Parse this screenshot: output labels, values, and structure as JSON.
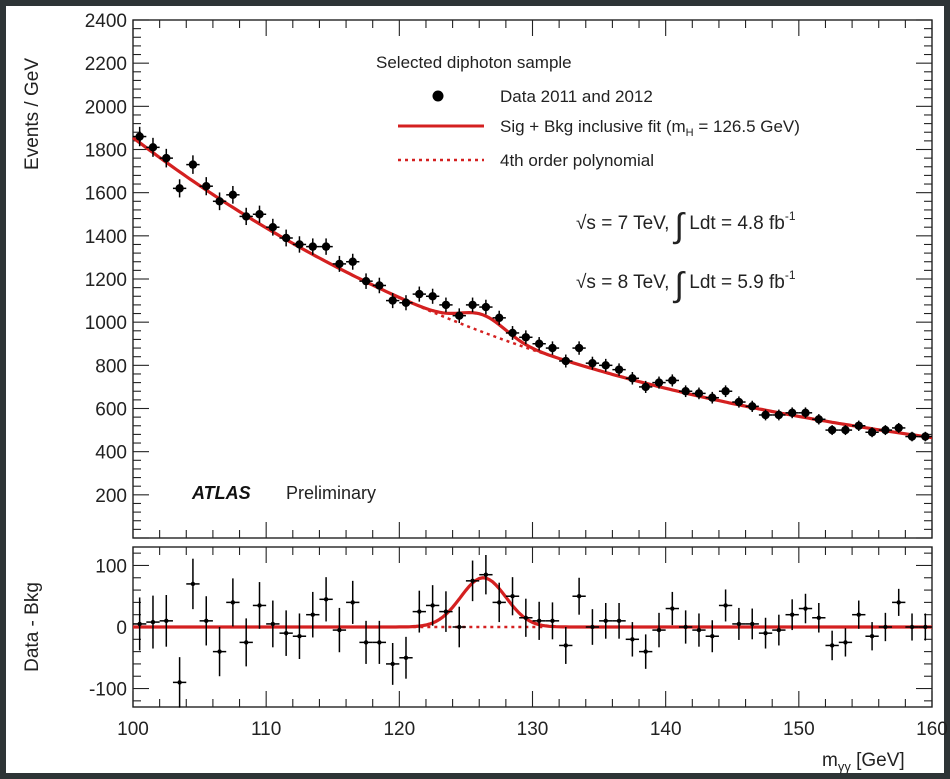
{
  "chart_data": [
    {
      "type": "scatter",
      "panel": "main",
      "ylabel": "Events / GeV",
      "xlim": [
        100,
        160
      ],
      "ylim": [
        0,
        2400
      ],
      "yticks": [
        "200",
        "400",
        "600",
        "800",
        "1000",
        "1200",
        "1400",
        "1600",
        "1800",
        "2000",
        "2200",
        "2400"
      ],
      "legend_header": "Selected diphoton sample",
      "legend": [
        {
          "label": "Data 2011 and 2012",
          "style": "marker",
          "color": "#000000"
        },
        {
          "label": "Sig + Bkg inclusive fit (m_H = 126.5 GeV)",
          "style": "solid",
          "color": "#d42020"
        },
        {
          "label": "4th order polynomial",
          "style": "dotted",
          "color": "#d42020"
        }
      ],
      "annotations": {
        "lumi1": "√s = 7 TeV, ∫ Ldt = 4.8 fb⁻¹",
        "lumi2": "√s = 8 TeV, ∫ Ldt = 5.9 fb⁻¹",
        "experiment": "ATLAS",
        "status": "Preliminary"
      },
      "series": [
        {
          "name": "Data 2011 and 2012",
          "points": [
            [
              100.5,
              1860,
              45
            ],
            [
              101.5,
              1810,
              44
            ],
            [
              102.5,
              1760,
              43
            ],
            [
              103.5,
              1620,
              42
            ],
            [
              104.5,
              1730,
              43
            ],
            [
              105.5,
              1630,
              42
            ],
            [
              106.5,
              1560,
              41
            ],
            [
              107.5,
              1590,
              41
            ],
            [
              108.5,
              1490,
              40
            ],
            [
              109.5,
              1500,
              40
            ],
            [
              110.5,
              1440,
              39
            ],
            [
              111.5,
              1390,
              39
            ],
            [
              112.5,
              1360,
              38
            ],
            [
              113.5,
              1350,
              38
            ],
            [
              114.5,
              1350,
              38
            ],
            [
              115.5,
              1270,
              37
            ],
            [
              116.5,
              1280,
              37
            ],
            [
              117.5,
              1190,
              36
            ],
            [
              118.5,
              1170,
              36
            ],
            [
              119.5,
              1100,
              35
            ],
            [
              120.5,
              1090,
              35
            ],
            [
              121.5,
              1130,
              35
            ],
            [
              122.5,
              1120,
              35
            ],
            [
              123.5,
              1080,
              34
            ],
            [
              124.5,
              1030,
              34
            ],
            [
              125.5,
              1080,
              34
            ],
            [
              126.5,
              1070,
              34
            ],
            [
              127.5,
              1020,
              33
            ],
            [
              128.5,
              950,
              32
            ],
            [
              129.5,
              930,
              32
            ],
            [
              130.5,
              900,
              31
            ],
            [
              131.5,
              880,
              31
            ],
            [
              132.5,
              820,
              30
            ],
            [
              133.5,
              880,
              31
            ],
            [
              134.5,
              810,
              30
            ],
            [
              135.5,
              800,
              30
            ],
            [
              136.5,
              780,
              29
            ],
            [
              137.5,
              740,
              29
            ],
            [
              138.5,
              700,
              28
            ],
            [
              139.5,
              720,
              28
            ],
            [
              140.5,
              730,
              28
            ],
            [
              141.5,
              680,
              27
            ],
            [
              142.5,
              670,
              27
            ],
            [
              143.5,
              650,
              27
            ],
            [
              144.5,
              680,
              27
            ],
            [
              145.5,
              630,
              26
            ],
            [
              146.5,
              610,
              26
            ],
            [
              147.5,
              570,
              25
            ],
            [
              148.5,
              570,
              25
            ],
            [
              149.5,
              580,
              25
            ],
            [
              150.5,
              580,
              25
            ],
            [
              151.5,
              550,
              24
            ],
            [
              152.5,
              500,
              23
            ],
            [
              153.5,
              500,
              23
            ],
            [
              154.5,
              520,
              24
            ],
            [
              155.5,
              490,
              23
            ],
            [
              156.5,
              500,
              23
            ],
            [
              157.5,
              510,
              23
            ],
            [
              158.5,
              470,
              22
            ],
            [
              159.5,
              470,
              22
            ]
          ]
        }
      ]
    },
    {
      "type": "scatter",
      "panel": "residual",
      "xlabel": "m_γγ [GeV]",
      "ylabel": "Data - Bkg",
      "xlim": [
        100,
        160
      ],
      "ylim": [
        -130,
        130
      ],
      "xticks": [
        "100",
        "110",
        "120",
        "130",
        "140",
        "150",
        "160"
      ],
      "yticks": [
        "-100",
        "0",
        "100"
      ],
      "series": [
        {
          "name": "Data - Bkg",
          "points": [
            [
              100.5,
              5,
              43
            ],
            [
              101.5,
              8,
              43
            ],
            [
              102.5,
              10,
              42
            ],
            [
              103.5,
              -90,
              41
            ],
            [
              104.5,
              70,
              41
            ],
            [
              105.5,
              10,
              40
            ],
            [
              106.5,
              -40,
              40
            ],
            [
              107.5,
              40,
              39
            ],
            [
              108.5,
              -25,
              39
            ],
            [
              109.5,
              35,
              38
            ],
            [
              110.5,
              5,
              38
            ],
            [
              111.5,
              -10,
              37
            ],
            [
              112.5,
              -15,
              37
            ],
            [
              113.5,
              20,
              37
            ],
            [
              114.5,
              45,
              36
            ],
            [
              115.5,
              -5,
              36
            ],
            [
              116.5,
              40,
              35
            ],
            [
              117.5,
              -25,
              35
            ],
            [
              118.5,
              -25,
              35
            ],
            [
              119.5,
              -60,
              34
            ],
            [
              120.5,
              -50,
              34
            ],
            [
              121.5,
              25,
              34
            ],
            [
              122.5,
              35,
              33
            ],
            [
              123.5,
              25,
              33
            ],
            [
              124.5,
              0,
              33
            ],
            [
              125.5,
              75,
              33
            ],
            [
              126.5,
              85,
              32
            ],
            [
              127.5,
              40,
              32
            ],
            [
              128.5,
              50,
              31
            ],
            [
              129.5,
              15,
              31
            ],
            [
              130.5,
              10,
              31
            ],
            [
              131.5,
              10,
              30
            ],
            [
              132.5,
              -30,
              30
            ],
            [
              133.5,
              50,
              30
            ],
            [
              134.5,
              0,
              29
            ],
            [
              135.5,
              10,
              29
            ],
            [
              136.5,
              10,
              29
            ],
            [
              137.5,
              -20,
              28
            ],
            [
              138.5,
              -40,
              28
            ],
            [
              139.5,
              -5,
              28
            ],
            [
              140.5,
              30,
              27
            ],
            [
              141.5,
              0,
              27
            ],
            [
              142.5,
              -5,
              27
            ],
            [
              143.5,
              -15,
              26
            ],
            [
              144.5,
              35,
              26
            ],
            [
              145.5,
              5,
              26
            ],
            [
              146.5,
              5,
              25
            ],
            [
              147.5,
              -10,
              25
            ],
            [
              148.5,
              -5,
              25
            ],
            [
              149.5,
              20,
              25
            ],
            [
              150.5,
              30,
              24
            ],
            [
              151.5,
              15,
              24
            ],
            [
              152.5,
              -30,
              24
            ],
            [
              153.5,
              -25,
              23
            ],
            [
              154.5,
              20,
              23
            ],
            [
              155.5,
              -15,
              23
            ],
            [
              156.5,
              0,
              23
            ],
            [
              157.5,
              40,
              22
            ],
            [
              158.5,
              0,
              22
            ],
            [
              159.5,
              0,
              22
            ]
          ]
        }
      ]
    }
  ],
  "colors": {
    "fit": "#d42020",
    "data": "#000000",
    "frame": "#2e3436"
  }
}
